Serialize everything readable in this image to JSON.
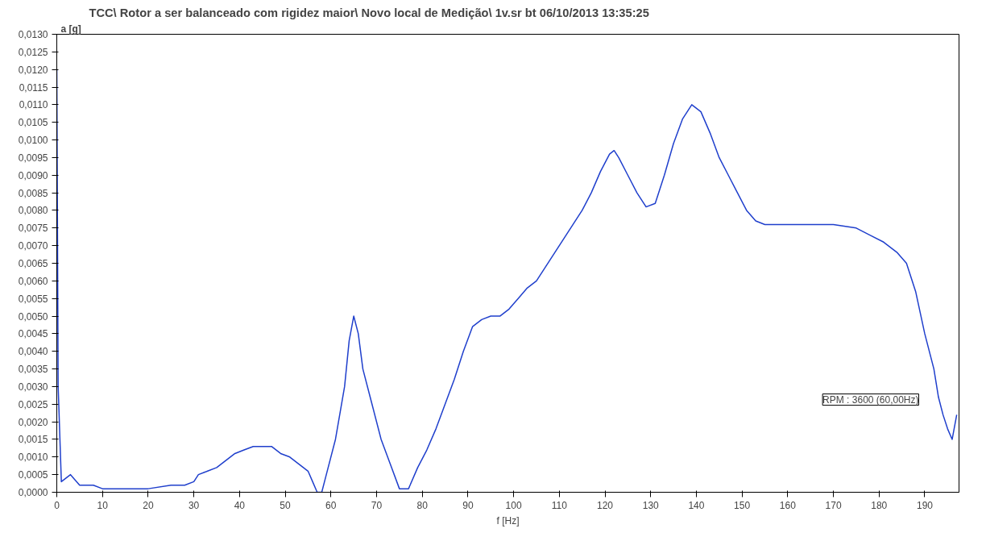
{
  "chart_data": {
    "type": "line",
    "title": "TCC\\ Rotor a ser balanceado com rigidez maior\\ Novo local de Medição\\ 1v.sr    bt 06/10/2013 13:35:25",
    "xlabel": "f [Hz]",
    "ylabel": "a [g]",
    "annotations": [
      "RPM : 3600 (60,00Hz)"
    ],
    "x": [
      0,
      0.3,
      1,
      3,
      5,
      8,
      10,
      15,
      20,
      25,
      28,
      30,
      31,
      33,
      35,
      37,
      39,
      41,
      43,
      47,
      49,
      51,
      53,
      55,
      56,
      57,
      58,
      59,
      61,
      63,
      64,
      65,
      66,
      67,
      69,
      71,
      73,
      75,
      77,
      79,
      81,
      83,
      85,
      87,
      89,
      91,
      93,
      95,
      97,
      99,
      101,
      103,
      105,
      107,
      109,
      111,
      113,
      115,
      117,
      119,
      121,
      122,
      123,
      125,
      127,
      129,
      131,
      133,
      135,
      137,
      139,
      141,
      143,
      145,
      147,
      149,
      151,
      153,
      155,
      160,
      165,
      170,
      175,
      178,
      181,
      184,
      186,
      188,
      190,
      192,
      193,
      194,
      195,
      196,
      197
    ],
    "series": [
      {
        "color": "#1f3fcc",
        "values": [
          0.012,
          0.003,
          0.0003,
          0.0005,
          0.0002,
          0.0002,
          0.0001,
          0.0001,
          0.0001,
          0.0002,
          0.0002,
          0.0003,
          0.0005,
          0.0006,
          0.0007,
          0.0009,
          0.0011,
          0.0012,
          0.0013,
          0.0013,
          0.0011,
          0.001,
          0.0008,
          0.0006,
          0.0003,
          0.0,
          0.0,
          0.0005,
          0.0015,
          0.003,
          0.0043,
          0.005,
          0.0045,
          0.0035,
          0.0025,
          0.0015,
          0.0008,
          0.0001,
          0.0001,
          0.0007,
          0.0012,
          0.0018,
          0.0025,
          0.0032,
          0.004,
          0.0047,
          0.0049,
          0.005,
          0.005,
          0.0052,
          0.0055,
          0.0058,
          0.006,
          0.0064,
          0.0068,
          0.0072,
          0.0076,
          0.008,
          0.0085,
          0.0091,
          0.0096,
          0.0097,
          0.0095,
          0.009,
          0.0085,
          0.0081,
          0.0082,
          0.009,
          0.0099,
          0.0106,
          0.011,
          0.0108,
          0.0102,
          0.0095,
          0.009,
          0.0085,
          0.008,
          0.0077,
          0.0076,
          0.0076,
          0.0076,
          0.0076,
          0.0075,
          0.0073,
          0.0071,
          0.0068,
          0.0065,
          0.0057,
          0.0045,
          0.0035,
          0.0027,
          0.0022,
          0.0018,
          0.0015,
          0.0022
        ]
      }
    ],
    "xlim": [
      0,
      197.5
    ],
    "xticks": [
      0,
      10,
      20,
      30,
      40,
      50,
      60,
      70,
      80,
      90,
      100,
      110,
      120,
      130,
      140,
      150,
      160,
      170,
      180,
      190
    ],
    "ylim": [
      0,
      0.013
    ],
    "yticks": [
      {
        "value": 0,
        "label": "0,0000"
      },
      {
        "value": 0.0005,
        "label": "0,0005"
      },
      {
        "value": 0.001,
        "label": "0,0010"
      },
      {
        "value": 0.0015,
        "label": "0,0015"
      },
      {
        "value": 0.002,
        "label": "0,0020"
      },
      {
        "value": 0.0025,
        "label": "0,0025"
      },
      {
        "value": 0.003,
        "label": "0,0030"
      },
      {
        "value": 0.0035,
        "label": "0,0035"
      },
      {
        "value": 0.004,
        "label": "0,0040"
      },
      {
        "value": 0.0045,
        "label": "0,0045"
      },
      {
        "value": 0.005,
        "label": "0,0050"
      },
      {
        "value": 0.0055,
        "label": "0,0055"
      },
      {
        "value": 0.006,
        "label": "0,0060"
      },
      {
        "value": 0.0065,
        "label": "0,0065"
      },
      {
        "value": 0.007,
        "label": "0,0070"
      },
      {
        "value": 0.0075,
        "label": "0,0075"
      },
      {
        "value": 0.008,
        "label": "0,0080"
      },
      {
        "value": 0.0085,
        "label": "0,0085"
      },
      {
        "value": 0.009,
        "label": "0,0090"
      },
      {
        "value": 0.0095,
        "label": "0,0095"
      },
      {
        "value": 0.01,
        "label": "0,0100"
      },
      {
        "value": 0.0105,
        "label": "0,0105"
      },
      {
        "value": 0.011,
        "label": "0,0110"
      },
      {
        "value": 0.0115,
        "label": "0,0115"
      },
      {
        "value": 0.012,
        "label": "0,0120"
      },
      {
        "value": 0.0125,
        "label": "0,0125"
      },
      {
        "value": 0.013,
        "label": "0,0130"
      }
    ],
    "grid": false,
    "line_style": "solid"
  }
}
